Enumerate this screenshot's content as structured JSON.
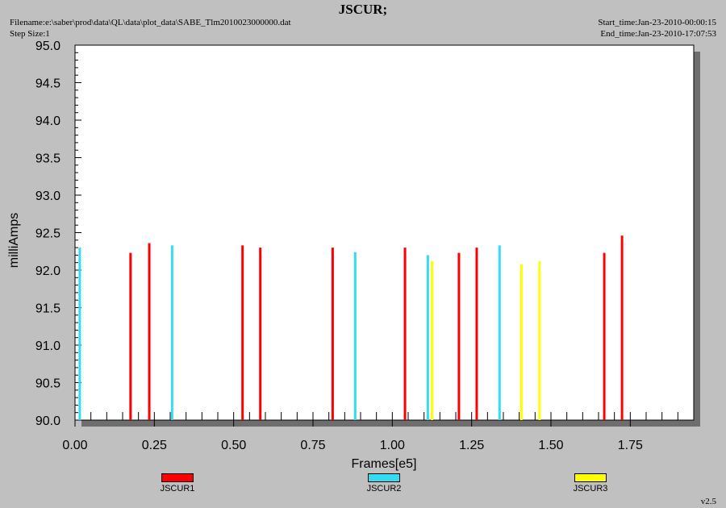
{
  "header": {
    "title": "JSCUR;",
    "filename": "Filename:e:\\saber\\prod\\data\\QL\\data\\plot_data\\SABE_Tlm2010023000000.dat",
    "step_size": "Step Size:1",
    "start_time": "Start_time:Jan-23-2010-00:00:15",
    "end_time": "End_time:Jan-23-2010-17:07:53"
  },
  "footer": {
    "version": "v2.5"
  },
  "chart_data": {
    "type": "bar",
    "xlabel": "Frames[e5]",
    "ylabel": "milliAmps",
    "xlim": [
      0,
      1.95
    ],
    "ylim": [
      90.0,
      95.0
    ],
    "xticks": [
      "0.00",
      "0.25",
      "0.50",
      "0.75",
      "1.00",
      "1.25",
      "1.50",
      "1.75"
    ],
    "yticks": [
      "90.0",
      "90.5",
      "91.0",
      "91.5",
      "92.0",
      "92.5",
      "93.0",
      "93.5",
      "94.0",
      "94.5",
      "95.0"
    ],
    "legend_position": "bottom",
    "series": [
      {
        "name": "JSCUR1",
        "color": "#ff0000",
        "points": [
          {
            "x": 0.175,
            "y": 92.23
          },
          {
            "x": 0.234,
            "y": 92.36
          },
          {
            "x": 0.528,
            "y": 92.33
          },
          {
            "x": 0.584,
            "y": 92.3
          },
          {
            "x": 0.812,
            "y": 92.3
          },
          {
            "x": 1.04,
            "y": 92.3
          },
          {
            "x": 1.21,
            "y": 92.23
          },
          {
            "x": 1.266,
            "y": 92.3
          },
          {
            "x": 1.668,
            "y": 92.23
          },
          {
            "x": 1.724,
            "y": 92.46
          }
        ]
      },
      {
        "name": "JSCUR2",
        "color": "#33dcf0",
        "points": [
          {
            "x": 0.015,
            "y": 92.3
          },
          {
            "x": 0.306,
            "y": 92.33
          },
          {
            "x": 0.883,
            "y": 92.24
          },
          {
            "x": 1.112,
            "y": 92.2
          },
          {
            "x": 1.338,
            "y": 92.33
          }
        ]
      },
      {
        "name": "JSCUR3",
        "color": "#ffff00",
        "points": [
          {
            "x": 1.125,
            "y": 92.12
          },
          {
            "x": 1.407,
            "y": 92.08
          },
          {
            "x": 1.464,
            "y": 92.12
          }
        ]
      }
    ]
  }
}
